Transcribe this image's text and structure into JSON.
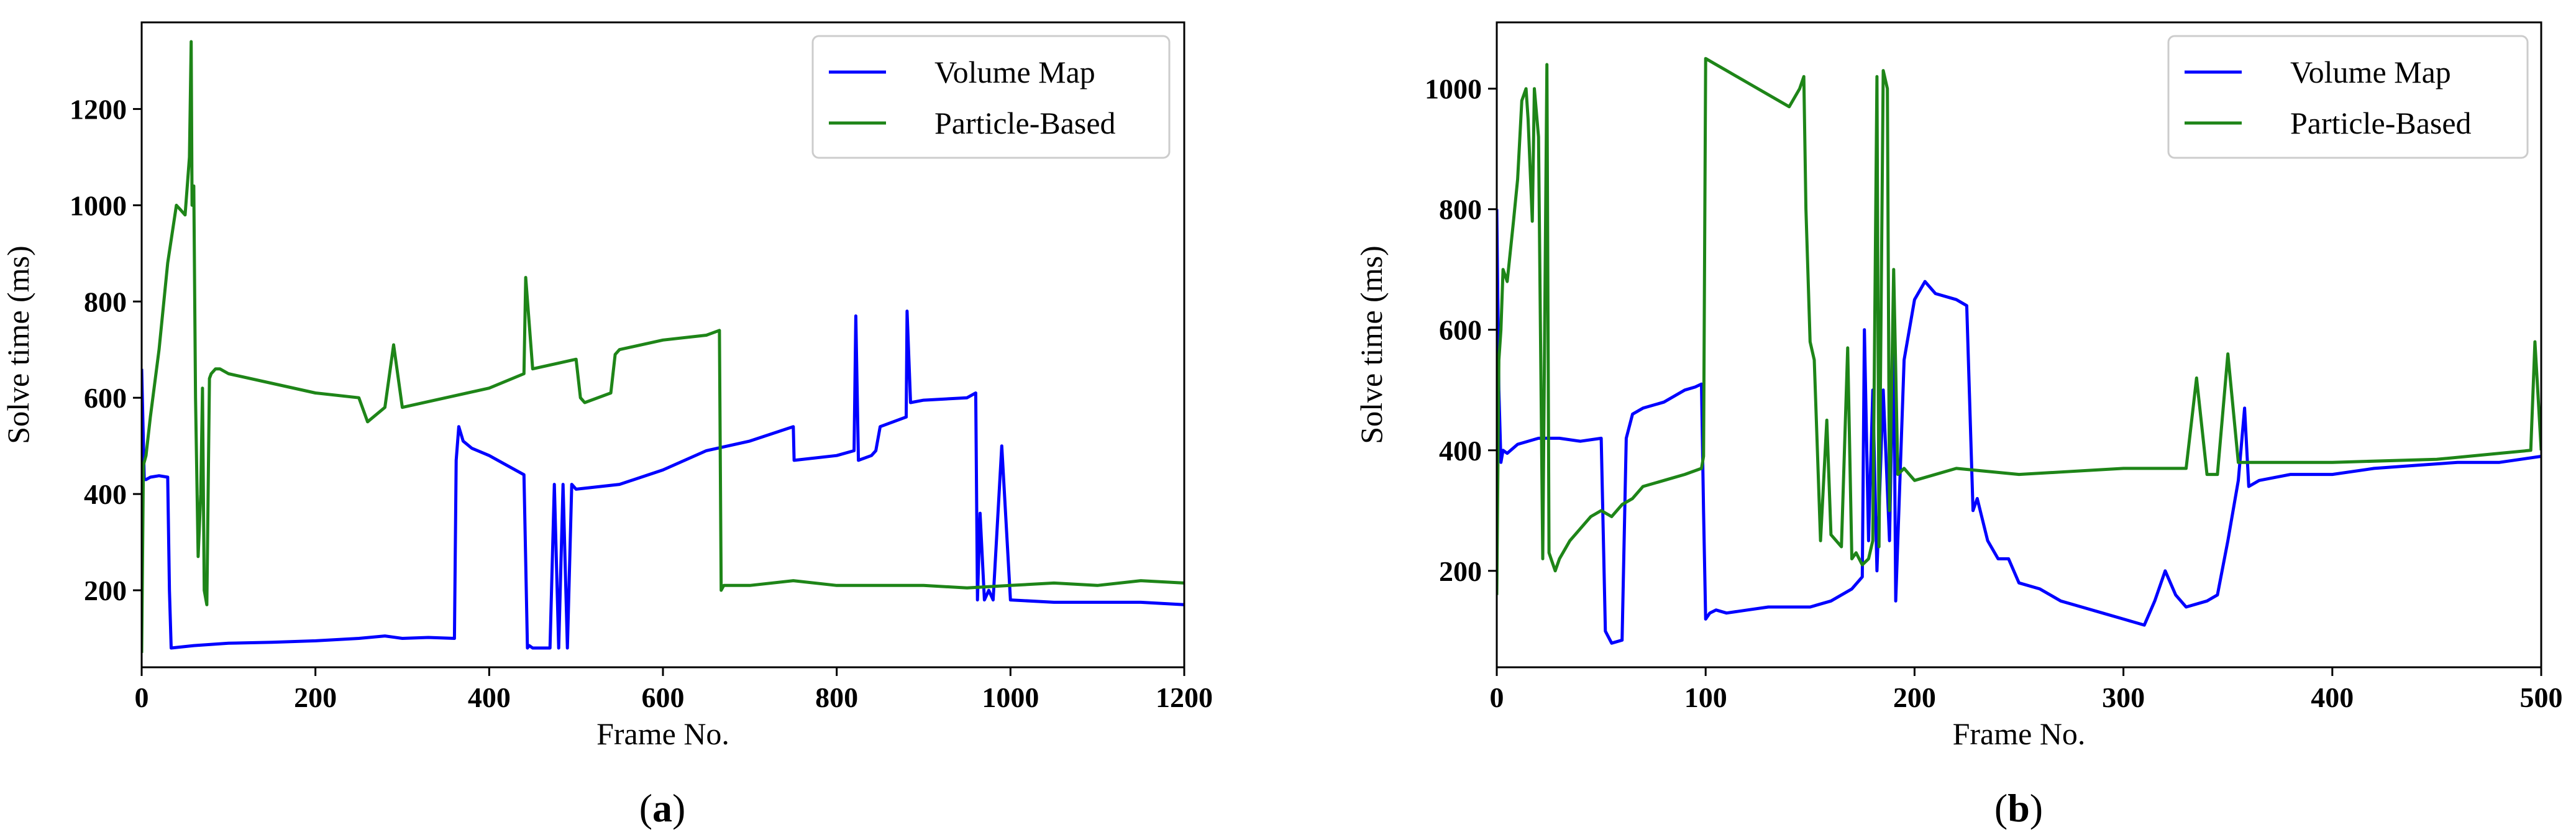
{
  "chart_data": [
    {
      "type": "line",
      "panel_label": "a",
      "xlabel": "Frame No.",
      "ylabel": "Solve time (ms)",
      "xlim": [
        0,
        1200
      ],
      "ylim": [
        40,
        1380
      ],
      "xticks": [
        0,
        200,
        400,
        600,
        800,
        1000,
        1200
      ],
      "yticks": [
        200,
        400,
        600,
        800,
        1000,
        1200
      ],
      "legend_position": "top-right",
      "series": [
        {
          "name": "Volume Map",
          "color": "#0000ff",
          "x": [
            0,
            3,
            5,
            10,
            20,
            30,
            32,
            34,
            60,
            100,
            150,
            200,
            250,
            280,
            300,
            330,
            360,
            362,
            365,
            370,
            380,
            400,
            420,
            440,
            444,
            446,
            450,
            470,
            475,
            480,
            485,
            490,
            495,
            500,
            550,
            600,
            650,
            700,
            750,
            751,
            800,
            820,
            822,
            825,
            840,
            845,
            850,
            880,
            881,
            885,
            900,
            950,
            960,
            962,
            965,
            970,
            975,
            980,
            990,
            1000,
            1050,
            1100,
            1150,
            1200
          ],
          "y": [
            660,
            430,
            430,
            435,
            438,
            435,
            200,
            80,
            85,
            90,
            92,
            95,
            100,
            105,
            100,
            102,
            100,
            470,
            540,
            510,
            495,
            480,
            460,
            440,
            80,
            85,
            80,
            80,
            420,
            80,
            420,
            80,
            420,
            410,
            420,
            450,
            490,
            510,
            540,
            470,
            480,
            490,
            770,
            470,
            480,
            490,
            540,
            560,
            780,
            590,
            595,
            600,
            610,
            180,
            360,
            180,
            200,
            180,
            500,
            180,
            175,
            175,
            175,
            170
          ]
        },
        {
          "name": "Particle-Based",
          "color": "#1e8518",
          "x": [
            0,
            2,
            5,
            10,
            20,
            30,
            40,
            45,
            50,
            55,
            57,
            58,
            60,
            62,
            65,
            68,
            70,
            72,
            75,
            78,
            80,
            85,
            90,
            100,
            150,
            200,
            250,
            260,
            280,
            290,
            300,
            350,
            400,
            440,
            442,
            450,
            500,
            505,
            510,
            540,
            545,
            550,
            600,
            650,
            665,
            667,
            670,
            700,
            750,
            800,
            850,
            900,
            950,
            1000,
            1050,
            1100,
            1150,
            1200
          ],
          "y": [
            70,
            460,
            480,
            560,
            700,
            880,
            1000,
            990,
            980,
            1100,
            1340,
            1000,
            1040,
            600,
            270,
            400,
            620,
            200,
            170,
            640,
            650,
            660,
            660,
            650,
            630,
            610,
            600,
            550,
            580,
            710,
            580,
            600,
            620,
            650,
            850,
            660,
            680,
            600,
            590,
            610,
            690,
            700,
            720,
            730,
            740,
            200,
            210,
            210,
            220,
            210,
            210,
            210,
            205,
            210,
            215,
            210,
            220,
            215
          ]
        }
      ]
    },
    {
      "type": "line",
      "panel_label": "b",
      "xlabel": "Frame No.",
      "ylabel": "Solve time (ms)",
      "xlim": [
        0,
        500
      ],
      "ylim": [
        40,
        1110
      ],
      "xticks": [
        0,
        100,
        200,
        300,
        400,
        500
      ],
      "yticks": [
        200,
        400,
        600,
        800,
        1000
      ],
      "legend_position": "top-right",
      "series": [
        {
          "name": "Volume Map",
          "color": "#0000ff",
          "x": [
            0,
            1,
            2,
            3,
            5,
            10,
            20,
            30,
            40,
            50,
            52,
            55,
            60,
            62,
            65,
            70,
            80,
            90,
            95,
            98,
            99,
            100,
            102,
            105,
            110,
            120,
            130,
            140,
            150,
            160,
            170,
            175,
            176,
            178,
            180,
            182,
            185,
            188,
            190,
            191,
            195,
            200,
            205,
            210,
            220,
            225,
            228,
            230,
            235,
            240,
            245,
            250,
            260,
            270,
            280,
            290,
            300,
            310,
            315,
            320,
            325,
            330,
            340,
            345,
            350,
            355,
            358,
            360,
            365,
            380,
            400,
            420,
            440,
            460,
            480,
            500
          ],
          "y": [
            800,
            500,
            380,
            400,
            395,
            410,
            420,
            420,
            415,
            420,
            100,
            80,
            85,
            420,
            460,
            470,
            480,
            500,
            505,
            510,
            300,
            120,
            130,
            135,
            130,
            135,
            140,
            140,
            140,
            150,
            170,
            190,
            600,
            250,
            500,
            200,
            500,
            250,
            600,
            150,
            550,
            650,
            680,
            660,
            650,
            640,
            300,
            320,
            250,
            220,
            220,
            180,
            170,
            150,
            140,
            130,
            120,
            110,
            150,
            200,
            160,
            140,
            150,
            160,
            250,
            350,
            470,
            340,
            350,
            360,
            360,
            370,
            375,
            380,
            380,
            390
          ]
        },
        {
          "name": "Particle-Based",
          "color": "#1e8518",
          "x": [
            0,
            1,
            2,
            3,
            5,
            8,
            10,
            12,
            14,
            15,
            17,
            18,
            20,
            22,
            24,
            25,
            26,
            28,
            30,
            35,
            40,
            45,
            50,
            55,
            60,
            65,
            70,
            80,
            90,
            98,
            99,
            100,
            105,
            110,
            120,
            130,
            140,
            145,
            147,
            148,
            150,
            152,
            155,
            158,
            160,
            165,
            168,
            170,
            172,
            175,
            178,
            180,
            182,
            183,
            185,
            187,
            188,
            190,
            192,
            195,
            200,
            220,
            250,
            300,
            330,
            335,
            340,
            345,
            350,
            355,
            360,
            400,
            450,
            480,
            495,
            497,
            500
          ],
          "y": [
            160,
            550,
            600,
            700,
            680,
            780,
            850,
            980,
            1000,
            950,
            780,
            1000,
            920,
            220,
            1040,
            230,
            220,
            200,
            220,
            250,
            270,
            290,
            300,
            290,
            310,
            320,
            340,
            350,
            360,
            370,
            390,
            1050,
            1040,
            1030,
            1010,
            990,
            970,
            1000,
            1020,
            800,
            580,
            550,
            250,
            450,
            260,
            240,
            570,
            220,
            230,
            210,
            220,
            250,
            1020,
            240,
            1030,
            1000,
            300,
            700,
            360,
            370,
            350,
            370,
            360,
            370,
            370,
            520,
            360,
            360,
            560,
            380,
            380,
            380,
            385,
            395,
            400,
            580,
            400
          ]
        }
      ]
    }
  ]
}
